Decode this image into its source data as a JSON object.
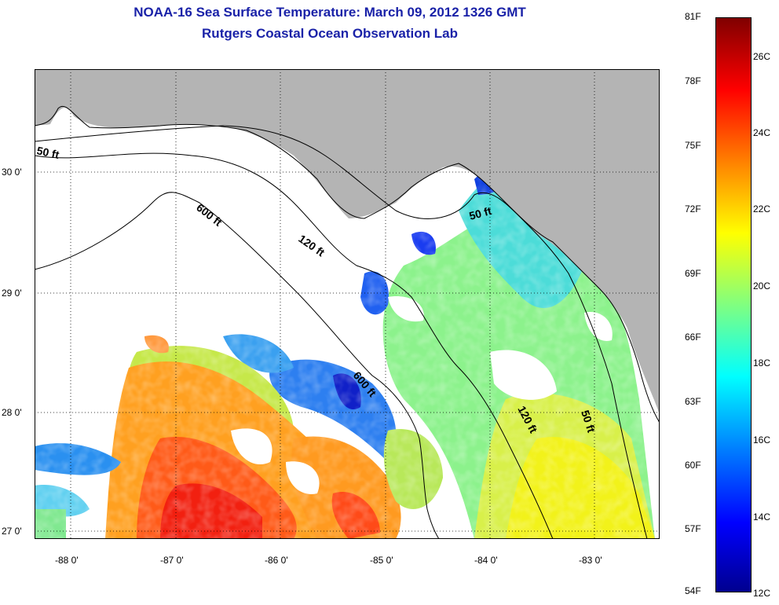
{
  "header": {
    "title": "NOAA-16 Sea Surface Temperature:  March 09, 2012 1326 GMT",
    "subtitle": "Rutgers Coastal Ocean Observation Lab"
  },
  "map": {
    "land_color": "#b4b4b4",
    "ocean_no_data_color": "#ffffff",
    "lat_labels": [
      {
        "value": 30,
        "text": "30 0'"
      },
      {
        "value": 29,
        "text": "29 0'"
      },
      {
        "value": 28,
        "text": "28 0'"
      },
      {
        "value": 27,
        "text": "27 0'"
      }
    ],
    "lon_labels": [
      {
        "value": -88,
        "text": "-88 0'"
      },
      {
        "value": -87,
        "text": "-87 0'"
      },
      {
        "value": -86,
        "text": "-86 0'"
      },
      {
        "value": -85,
        "text": "-85 0'"
      },
      {
        "value": -84,
        "text": "-84 0'"
      },
      {
        "value": -83,
        "text": "-83 0'"
      }
    ],
    "contour_labels": [
      {
        "id": "c50-west",
        "text": "50 ft"
      },
      {
        "id": "c600-west",
        "text": "600 ft"
      },
      {
        "id": "c120-mid",
        "text": "120 ft"
      },
      {
        "id": "c50-east",
        "text": "50 ft"
      },
      {
        "id": "c600-south",
        "text": "600 ft"
      },
      {
        "id": "c120-south",
        "text": "120 ft"
      },
      {
        "id": "c50-south",
        "text": "50 ft"
      }
    ]
  },
  "colorbar": {
    "fahrenheit": [
      "81F",
      "78F",
      "75F",
      "72F",
      "69F",
      "66F",
      "63F",
      "60F",
      "57F",
      "54F"
    ],
    "celsius": [
      "26C",
      "24C",
      "22C",
      "20C",
      "18C",
      "16C",
      "14C",
      "12C"
    ]
  }
}
